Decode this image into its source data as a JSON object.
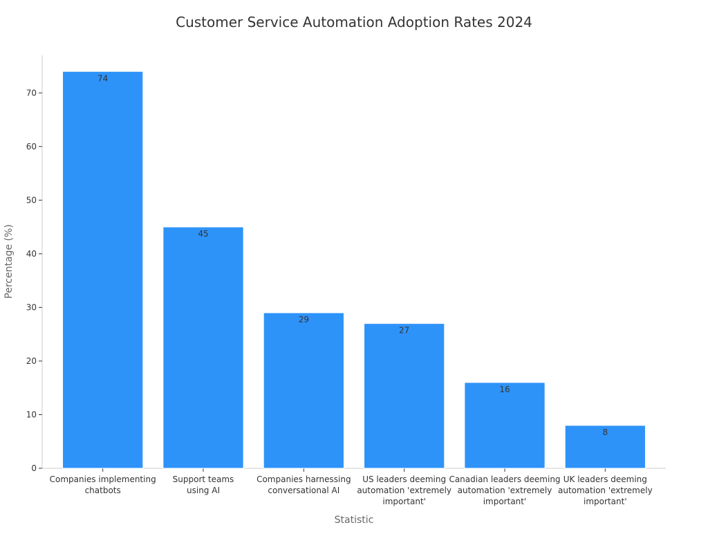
{
  "chart_data": {
    "type": "bar",
    "title": "Customer Service Automation Adoption Rates 2024",
    "xlabel": "Statistic",
    "ylabel": "Percentage (%)",
    "categories": [
      [
        "Companies implementing",
        "chatbots"
      ],
      [
        "Support teams",
        "using AI"
      ],
      [
        "Companies harnessing",
        "conversational AI"
      ],
      [
        "US leaders deeming",
        "automation 'extremely",
        "important'"
      ],
      [
        "Canadian leaders deeming",
        "automation 'extremely",
        "important'"
      ],
      [
        "UK leaders deeming",
        "automation 'extremely",
        "important'"
      ]
    ],
    "values": [
      74,
      45,
      29,
      27,
      16,
      8
    ],
    "value_labels": [
      "74",
      "45",
      "29",
      "27",
      "16",
      "8"
    ],
    "ylim": [
      0,
      77
    ],
    "yticks": [
      0,
      10,
      20,
      30,
      40,
      50,
      60,
      70
    ],
    "ytick_labels": [
      "0",
      "10",
      "20",
      "30",
      "40",
      "50",
      "60",
      "70"
    ],
    "grid": false,
    "legend": "none",
    "bar_color": "#2E93F9",
    "axis_color": "#cccccc",
    "text_color": "#333333",
    "label_color": "#666666"
  }
}
